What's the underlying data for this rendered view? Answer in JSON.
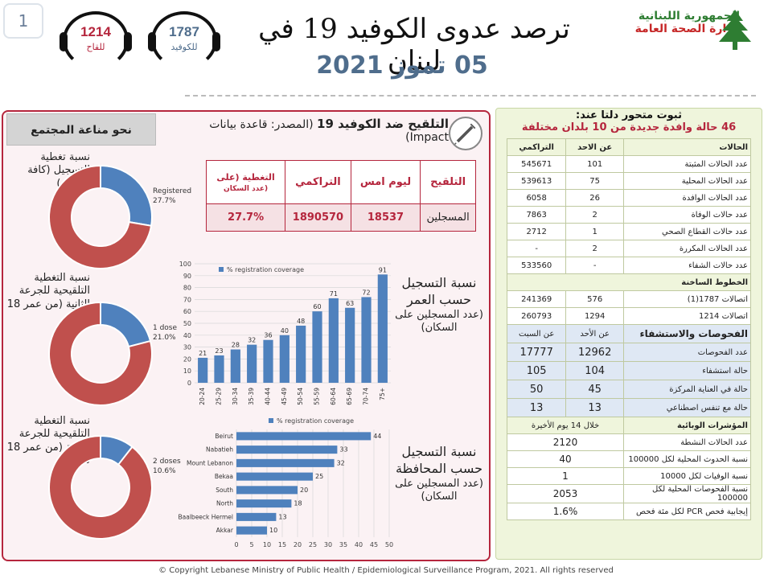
{
  "header": {
    "page_number": "1",
    "hotline_1214": {
      "number": "1214",
      "label": "للقاح"
    },
    "hotline_1787": {
      "number": "1787",
      "label": "للكوفيد"
    },
    "title": "ترصد عدوى الكوفيد 19 في لبنان",
    "date": "05 تموز 2021",
    "ministry_line1": "الجمهورية اللبنانية",
    "ministry_line2": "وزارة الصحة العامة"
  },
  "left": {
    "community_heading": "نحو مناعة المجتمع",
    "vaccination_title": "التلقيح ضد الكوفيد 19",
    "vaccination_source": "(المصدر: قاعدة بيانات Impact)",
    "table_headers": {
      "vaccination": "التلقيح",
      "yesterday": "ليوم امس",
      "cumulative": "التراكمي",
      "coverage": "التغطية (على",
      "coverage_sub": "عدد السكان)"
    },
    "table_row": {
      "label": "المسجلين",
      "yesterday": "18537",
      "cumulative": "1890570",
      "coverage": "27.7%"
    },
    "rings": [
      {
        "label": "نسبة تغطية التسجيل (كافة الاعمار)",
        "caption": "Registered",
        "value_label": "27.7%",
        "fraction": 0.277,
        "color": "#4f81bd"
      },
      {
        "label": "نسبة التغطية التلقيحية للجرعة الثانية (من عمر 18 سنة)",
        "caption": "1 dose",
        "value_label": "21.0%",
        "fraction": 0.21,
        "color": "#4f81bd"
      },
      {
        "label": "نسبة التغطية التلقيحية للجرعة الثانية (من عمر 18 سنة)",
        "caption": "2 doses",
        "value_label": "10.6%",
        "fraction": 0.106,
        "color": "#4f81bd"
      }
    ],
    "age_label": "نسبة التسجيل حسب العمر",
    "age_label_sub": "(عدد المسجلين على السكان)",
    "gov_label": "نسبة التسجيل حسب المحافظة",
    "gov_label_sub": "(عدد المسجلين على السكان)"
  },
  "chart_data": [
    {
      "type": "bar",
      "legend": "% registration coverage",
      "categories": [
        "20-24",
        "25-29",
        "30-34",
        "35-39",
        "40-44",
        "45-49",
        "50-54",
        "55-59",
        "60-64",
        "65-69",
        "70-74",
        "75+"
      ],
      "values": [
        21,
        23,
        28,
        32,
        36,
        40,
        48,
        60,
        71,
        63,
        72,
        91
      ],
      "ylim": [
        0,
        100
      ],
      "yticks": [
        0,
        10,
        20,
        30,
        40,
        50,
        60,
        70,
        80,
        90,
        100
      ],
      "color": "#4f81bd"
    },
    {
      "type": "bar",
      "orientation": "horizontal",
      "legend": "% registration coverage",
      "categories": [
        "Beirut",
        "Nabatieh",
        "Mount Lebanon",
        "Bekaa",
        "South",
        "North",
        "Baalbeeck Hermel",
        "Akkar"
      ],
      "values": [
        44,
        33,
        32,
        25,
        20,
        18,
        13,
        10
      ],
      "xlim": [
        0,
        50
      ],
      "xticks": [
        0,
        5,
        10,
        15,
        20,
        25,
        30,
        35,
        40,
        45,
        50
      ],
      "color": "#4f81bd"
    }
  ],
  "right": {
    "alert_line1": "ثبوت متحور دلتا عند:",
    "alert_line2": "46 حالة وافدة جديدة  من 10 بلدان مختلفة",
    "cases_header": {
      "name": "الحالات",
      "today": "عن الاحد",
      "cumulative": "التراكمي"
    },
    "cases": [
      {
        "name": "عدد الحالات المثبتة",
        "today": "101",
        "cumulative": "545671"
      },
      {
        "name": "عدد الحالات المحلية",
        "today": "75",
        "cumulative": "539613"
      },
      {
        "name": "عدد الحالات الوافدة",
        "today": "26",
        "cumulative": "6058"
      },
      {
        "name": "عدد حالات الوفاة",
        "today": "2",
        "cumulative": "7863"
      },
      {
        "name": "عدد حالات القطاع الصحي",
        "today": "1",
        "cumulative": "2712"
      },
      {
        "name": "عدد الحالات المكررة",
        "today": "2",
        "cumulative": "-"
      },
      {
        "name": "عدد حالات الشفاء",
        "today": "-",
        "cumulative": "533560"
      }
    ],
    "hotlines_header": "الخطوط الساخنة",
    "hotlines": [
      {
        "name": "اتصالات 1787(1)",
        "today": "576",
        "cumulative": "241369"
      },
      {
        "name": "اتصالات 1214",
        "today": "1294",
        "cumulative": "260793"
      }
    ],
    "tests_header": {
      "name": "الفحوصات والاستشفاء",
      "today": "عن الأحد",
      "saturday": "عن السبت"
    },
    "tests": [
      {
        "name": "عدد الفحوصات",
        "today": "12962",
        "saturday": "17777"
      },
      {
        "name": "حالة استشفاء",
        "today": "104",
        "saturday": "105"
      },
      {
        "name": "حالة في العناية المركزة",
        "today": "45",
        "saturday": "50"
      },
      {
        "name": "حالة مع تنفس اصطناعي",
        "today": "13",
        "saturday": "13"
      }
    ],
    "indicators_header": {
      "name": "المؤشرات الوبائية",
      "period": "خلال 14 يوم الأخيرة"
    },
    "indicators": [
      {
        "name": "عدد الحالات النشطة",
        "value": "2120"
      },
      {
        "name": "نسبة الحدوث المحلية لكل 100000",
        "value": "40"
      },
      {
        "name": "نسبة الوفيات لكل 10000",
        "value": "1"
      },
      {
        "name": "نسبة الفحوصات المحلية لكل 100000",
        "value": "2053"
      },
      {
        "name": "إيجابية فحص PCR لكل مئة فحص",
        "value": "1.6%"
      }
    ]
  },
  "footer": "© Copyright Lebanese Ministry of Public Health / Epidemiological Surveillance Program, 2021. All rights reserved"
}
